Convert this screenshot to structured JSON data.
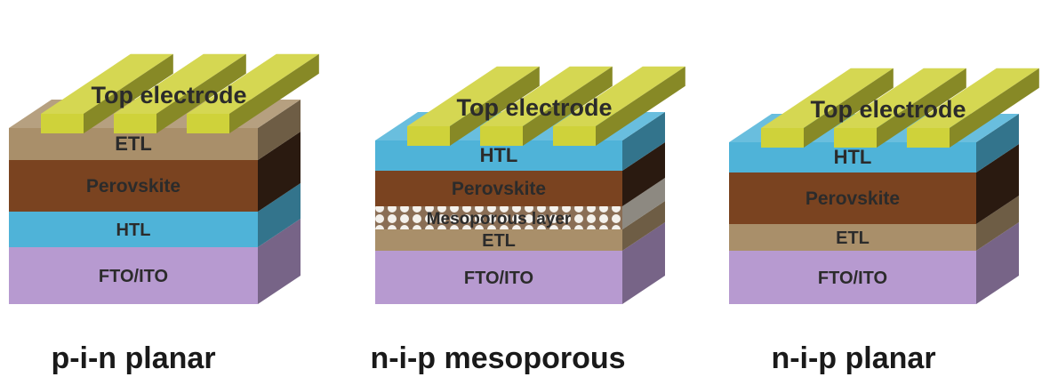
{
  "colors": {
    "electrode": "#cfd23a",
    "etl": "#a98f6a",
    "perovskite": "#7a4320",
    "htl": "#4fb3d8",
    "fto": "#b79ad0",
    "mesoporous": "#d9d2c6",
    "text": "#2b2b2b"
  },
  "devices": [
    {
      "caption": "p-i-n planar",
      "top_label": "Top electrode",
      "layers": [
        {
          "kind": "etl",
          "label": "ETL"
        },
        {
          "kind": "perovskite",
          "label": "Perovskite"
        },
        {
          "kind": "htl",
          "label": "HTL"
        },
        {
          "kind": "fto",
          "label": "FTO/ITO"
        }
      ]
    },
    {
      "caption": "n-i-p mesoporous",
      "top_label": "Top electrode",
      "layers": [
        {
          "kind": "htl",
          "label": "HTL"
        },
        {
          "kind": "perovskite",
          "label": "Perovskite"
        },
        {
          "kind": "mesoporous",
          "label": "Mesoporous layer"
        },
        {
          "kind": "etl",
          "label": "ETL"
        },
        {
          "kind": "fto",
          "label": "FTO/ITO"
        }
      ]
    },
    {
      "caption": "n-i-p planar",
      "top_label": "Top electrode",
      "layers": [
        {
          "kind": "htl",
          "label": "HTL"
        },
        {
          "kind": "perovskite",
          "label": "Perovskite"
        },
        {
          "kind": "etl",
          "label": "ETL"
        },
        {
          "kind": "fto",
          "label": "FTO/ITO"
        }
      ]
    }
  ]
}
